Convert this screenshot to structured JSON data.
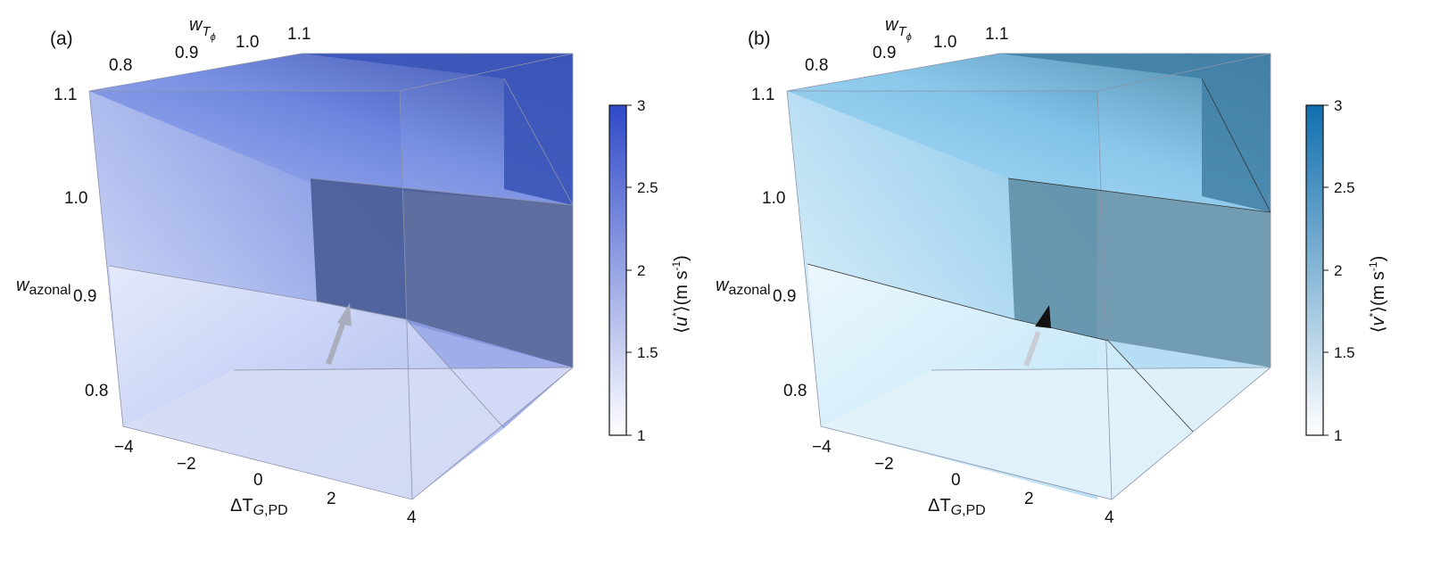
{
  "chart_data": [
    {
      "type": "3d-volume",
      "panel_label": "(a)",
      "x_axis": {
        "label_main": "ΔT",
        "label_sub_italic": "G",
        "label_sub_rest": ",PD",
        "ticks": [
          "−4",
          "−2",
          "0",
          "2",
          "4"
        ],
        "range": [
          -4,
          4
        ]
      },
      "y_axis": {
        "label_main": "w",
        "label_sub": "T",
        "label_subsub": "ϕ",
        "ticks": [
          "0.8",
          "0.9",
          "1.0",
          "1.1"
        ],
        "range": [
          0.75,
          1.1
        ]
      },
      "z_axis": {
        "label_main": "w",
        "label_sub": "azonal",
        "ticks": [
          "0.8",
          "0.9",
          "1.0",
          "1.1"
        ],
        "range": [
          0.75,
          1.1
        ]
      },
      "colorbar": {
        "quantity": "u",
        "label_unit": "(m s",
        "label_exp": "-1",
        "label_close": ")",
        "ticks": [
          "1",
          "1.5",
          "2",
          "2.5",
          "3"
        ],
        "range": [
          1,
          3
        ],
        "color_low": "#ffffff",
        "color_high": "#2f49c8"
      },
      "arrow_color": "#a9aebd"
    },
    {
      "type": "3d-volume",
      "panel_label": "(b)",
      "x_axis": {
        "label_main": "ΔT",
        "label_sub_italic": "G",
        "label_sub_rest": ",PD",
        "ticks": [
          "−4",
          "−2",
          "0",
          "2",
          "4"
        ],
        "range": [
          -4,
          4
        ]
      },
      "y_axis": {
        "label_main": "w",
        "label_sub": "T",
        "label_subsub": "ϕ",
        "ticks": [
          "0.8",
          "0.9",
          "1.0",
          "1.1"
        ],
        "range": [
          0.75,
          1.1
        ]
      },
      "z_axis": {
        "label_main": "w",
        "label_sub": "azonal",
        "ticks": [
          "0.8",
          "0.9",
          "1.0",
          "1.1"
        ],
        "range": [
          0.75,
          1.1
        ]
      },
      "colorbar": {
        "quantity": "v",
        "label_unit": "(m s",
        "label_exp": "-1",
        "label_close": ")",
        "ticks": [
          "1",
          "1.5",
          "2",
          "2.5",
          "3"
        ],
        "range": [
          1,
          3
        ],
        "color_low": "#ffffff",
        "color_high": "#0f6fae"
      },
      "arrow_color": "#111111"
    }
  ],
  "colors": {
    "panel_a": {
      "pale": "#e6ebfb",
      "light": "#a7b6f0",
      "mid": "#6c84de",
      "dark": "#2e45a6",
      "shadow": "#485a94"
    },
    "panel_b": {
      "pale": "#edf8fd",
      "light": "#b4e1f7",
      "mid": "#7fc2e8",
      "dark": "#3f7fa3",
      "shadow": "#5e8ea6"
    }
  }
}
